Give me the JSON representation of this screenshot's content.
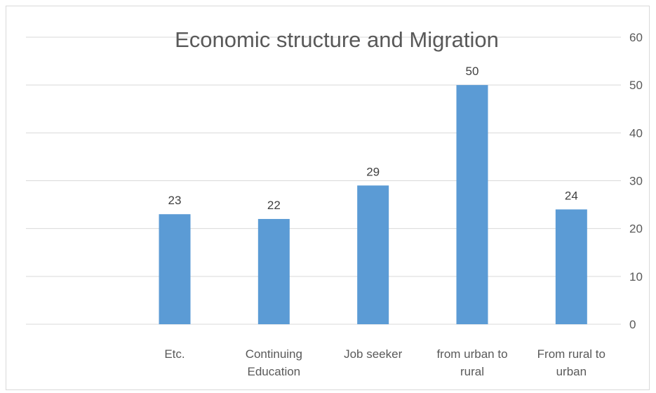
{
  "chart_data": {
    "type": "bar",
    "title": "Economic structure and Migration",
    "categories": [
      [
        "",
        ""
      ],
      [
        "Etc.",
        ""
      ],
      [
        "Continuing",
        "Education"
      ],
      [
        "Job seeker",
        ""
      ],
      [
        "from urban to",
        "rural"
      ],
      [
        "From rural to",
        "urban"
      ]
    ],
    "values": [
      null,
      23,
      22,
      29,
      50,
      24
    ],
    "data_labels": [
      "",
      "23",
      "22",
      "29",
      "50",
      "24"
    ],
    "ylim": [
      0,
      60
    ],
    "yticks": [
      "0",
      "10",
      "20",
      "30",
      "40",
      "50",
      "60"
    ],
    "y_axis_side": "right",
    "grid": true,
    "legend": "none",
    "colors": {
      "bar": "#5b9bd5",
      "grid": "#d9d9d9",
      "text": "#595959"
    }
  }
}
